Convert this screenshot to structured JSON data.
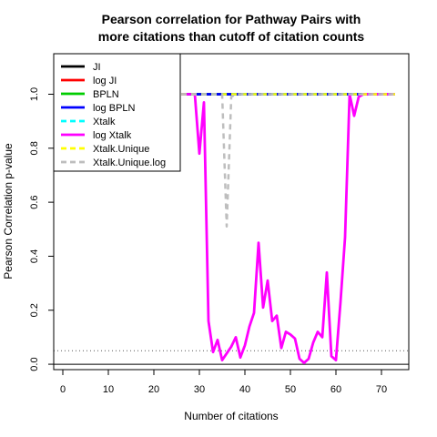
{
  "chart_data": {
    "type": "line",
    "title_lines": [
      "Pearson correlation for Pathway Pairs with",
      "more citations than cutoff of citation counts"
    ],
    "xlabel": "Number of citations",
    "ylabel": "Pearson Correlation p-value",
    "xlim": [
      -2,
      76
    ],
    "ylim": [
      -0.02,
      1.15
    ],
    "x_ticks": [
      0,
      10,
      20,
      30,
      40,
      50,
      60,
      70
    ],
    "y_ticks": [
      0.0,
      0.2,
      0.4,
      0.6,
      0.8,
      1.0
    ],
    "y_tick_labels": [
      "0.0",
      "0.2",
      "0.4",
      "0.6",
      "0.8",
      "1.0"
    ],
    "reference_lines": [
      {
        "y": 0.05,
        "style": "dotted",
        "color": "#555555"
      },
      {
        "y": 0.0,
        "style": "solid",
        "color": "#000000"
      }
    ],
    "legend_position": "top-left",
    "series": [
      {
        "name": "JI",
        "color": "#000000",
        "dash": "solid",
        "x": [
          26,
          27,
          28,
          29,
          30,
          31,
          32,
          33,
          34,
          35,
          36,
          37,
          38,
          39,
          40,
          41,
          42,
          43,
          44,
          45,
          46,
          47,
          48,
          49,
          50,
          51,
          52,
          53,
          54,
          55,
          56,
          57,
          58,
          59,
          60,
          61,
          62,
          63,
          64,
          65,
          66,
          67,
          68,
          69,
          70,
          71,
          72,
          73
        ],
        "y": [
          1,
          1,
          1,
          1,
          1,
          1,
          1,
          1,
          1,
          1,
          1,
          1,
          1,
          1,
          1,
          1,
          1,
          1,
          1,
          1,
          1,
          1,
          1,
          1,
          1,
          1,
          1,
          1,
          1,
          1,
          1,
          1,
          1,
          1,
          1,
          1,
          1,
          1,
          1,
          1,
          1,
          1,
          1,
          1,
          1,
          1,
          1,
          1
        ]
      },
      {
        "name": "log JI",
        "color": "#ff0000",
        "dash": "solid",
        "x": [
          26,
          27,
          28,
          29,
          30,
          31,
          32,
          33,
          34,
          35,
          36,
          37,
          38,
          39,
          40,
          41,
          42,
          43,
          44,
          45,
          46,
          47,
          48,
          49,
          50,
          51,
          52,
          53,
          54,
          55,
          56,
          57,
          58,
          59,
          60,
          61,
          62,
          63,
          64,
          65,
          66,
          67,
          68,
          69,
          70,
          71,
          72,
          73
        ],
        "y": [
          1,
          1,
          1,
          1,
          1,
          1,
          1,
          1,
          1,
          1,
          1,
          1,
          1,
          1,
          1,
          1,
          1,
          1,
          1,
          1,
          1,
          1,
          1,
          1,
          1,
          1,
          1,
          1,
          1,
          1,
          1,
          1,
          1,
          1,
          1,
          1,
          1,
          1,
          1,
          1,
          1,
          1,
          1,
          1,
          1,
          1,
          1,
          1
        ]
      },
      {
        "name": "BPLN",
        "color": "#00cc00",
        "dash": "solid",
        "x": [
          26,
          27,
          28,
          29,
          30,
          31,
          32,
          33,
          34,
          35,
          36,
          37,
          38,
          39,
          40,
          41,
          42,
          43,
          44,
          45,
          46,
          47,
          48,
          49,
          50,
          51,
          52,
          53,
          54,
          55,
          56,
          57,
          58,
          59,
          60,
          61,
          62,
          63,
          64,
          65,
          66,
          67,
          68,
          69,
          70,
          71,
          72,
          73
        ],
        "y": [
          1,
          1,
          1,
          1,
          1,
          1,
          1,
          1,
          1,
          1,
          1,
          1,
          1,
          1,
          1,
          1,
          1,
          1,
          1,
          1,
          1,
          1,
          1,
          1,
          1,
          1,
          1,
          1,
          1,
          1,
          1,
          1,
          1,
          1,
          1,
          1,
          1,
          1,
          1,
          1,
          1,
          1,
          1,
          1,
          1,
          1,
          1,
          1
        ]
      },
      {
        "name": "log BPLN",
        "color": "#0000ff",
        "dash": "solid",
        "x": [
          26,
          27,
          28,
          29,
          30,
          31,
          32,
          33,
          34,
          35,
          36,
          37,
          38,
          39,
          40,
          41,
          42,
          43,
          44,
          45,
          46,
          47,
          48,
          49,
          50,
          51,
          52,
          53,
          54,
          55,
          56,
          57,
          58,
          59,
          60,
          61,
          62,
          63,
          64,
          65,
          66,
          67,
          68,
          69,
          70,
          71,
          72,
          73
        ],
        "y": [
          1,
          1,
          1,
          1,
          1,
          1,
          1,
          1,
          1,
          1,
          1,
          1,
          1,
          1,
          1,
          1,
          1,
          1,
          1,
          1,
          1,
          1,
          1,
          1,
          1,
          1,
          1,
          1,
          1,
          1,
          1,
          1,
          1,
          1,
          1,
          1,
          1,
          1,
          1,
          1,
          1,
          1,
          1,
          1,
          1,
          1,
          1,
          1
        ]
      },
      {
        "name": "Xtalk",
        "color": "#00ffff",
        "dash": "dashed",
        "x": [
          26,
          27,
          28,
          29,
          30,
          31,
          32,
          33,
          34,
          35,
          36,
          37,
          38,
          39,
          40,
          41,
          42,
          43,
          44,
          45,
          46,
          47,
          48,
          49,
          50,
          51,
          52,
          53,
          54,
          55,
          56,
          57,
          58,
          59,
          60,
          61,
          62,
          63,
          64,
          65,
          66,
          67,
          68,
          69,
          70,
          71,
          72,
          73
        ],
        "y": [
          1,
          1,
          1,
          1,
          1,
          1,
          1,
          1,
          1,
          1,
          1,
          1,
          1,
          1,
          1,
          1,
          1,
          1,
          1,
          1,
          1,
          1,
          1,
          1,
          1,
          1,
          1,
          1,
          1,
          1,
          1,
          1,
          1,
          1,
          1,
          1,
          1,
          1,
          1,
          1,
          1,
          1,
          1,
          1,
          1,
          1,
          1,
          1
        ]
      },
      {
        "name": "log Xtalk",
        "color": "#ff00ff",
        "dash": "solid",
        "x": [
          26,
          27,
          28,
          29,
          30,
          31,
          32,
          33,
          34,
          35,
          36,
          37,
          38,
          39,
          40,
          41,
          42,
          43,
          44,
          45,
          46,
          47,
          48,
          49,
          50,
          51,
          52,
          53,
          54,
          55,
          56,
          57,
          58,
          59,
          60,
          61,
          62,
          63,
          64,
          65,
          66,
          67,
          68,
          69,
          70,
          71,
          72,
          73
        ],
        "y": [
          1.0,
          1.0,
          1.0,
          1.0,
          0.78,
          0.97,
          0.16,
          0.045,
          0.09,
          0.015,
          0.04,
          0.065,
          0.1,
          0.025,
          0.07,
          0.14,
          0.19,
          0.45,
          0.21,
          0.31,
          0.16,
          0.18,
          0.06,
          0.12,
          0.11,
          0.095,
          0.02,
          0.005,
          0.02,
          0.08,
          0.12,
          0.1,
          0.34,
          0.03,
          0.015,
          0.23,
          0.47,
          1.0,
          0.92,
          0.99,
          1.0,
          1.0,
          1.0,
          1.0,
          1.0,
          1.0,
          1.0,
          1.0
        ]
      },
      {
        "name": "Xtalk.Unique",
        "color": "#ffff00",
        "dash": "dashed",
        "x": [
          26,
          27,
          28,
          29,
          30,
          31,
          32,
          33,
          34,
          35,
          36,
          37,
          38,
          39,
          40,
          41,
          42,
          43,
          44,
          45,
          46,
          47,
          48,
          49,
          50,
          51,
          52,
          53,
          54,
          55,
          56,
          57,
          58,
          59,
          60,
          61,
          62,
          63,
          64,
          65,
          66,
          67,
          68,
          69,
          70,
          71,
          72,
          73
        ],
        "y": [
          1,
          1,
          1,
          1,
          1,
          1,
          1,
          1,
          1,
          1,
          1,
          1,
          1,
          1,
          1,
          1,
          1,
          1,
          1,
          1,
          1,
          1,
          1,
          1,
          1,
          1,
          1,
          1,
          1,
          1,
          1,
          1,
          1,
          1,
          1,
          1,
          1,
          1,
          1,
          1,
          1,
          1,
          1,
          1,
          1,
          1,
          1,
          1
        ]
      },
      {
        "name": "Xtalk.Unique.log",
        "color": "#bebebe",
        "dash": "dashed",
        "x": [
          26,
          27,
          28,
          29,
          30,
          31,
          32,
          33,
          34,
          35,
          36,
          37,
          38,
          39,
          40,
          41,
          42,
          43,
          44,
          45,
          46,
          47,
          48,
          49,
          50,
          51,
          52,
          53,
          54,
          55,
          56,
          57,
          58,
          59,
          60,
          61,
          62,
          63,
          64,
          65,
          66,
          67,
          68,
          69,
          70,
          71,
          72,
          73
        ],
        "y": [
          1,
          1,
          1,
          1,
          1,
          1,
          1,
          1,
          1,
          1.0,
          0.51,
          0.99,
          1,
          1,
          1,
          1,
          1,
          1,
          1,
          1,
          1,
          1,
          1,
          1,
          1,
          1,
          1,
          1,
          1,
          1,
          1,
          1,
          1,
          1,
          1,
          1,
          1,
          1,
          1,
          1,
          1,
          1,
          1,
          1,
          1,
          1,
          1,
          1
        ]
      }
    ]
  }
}
